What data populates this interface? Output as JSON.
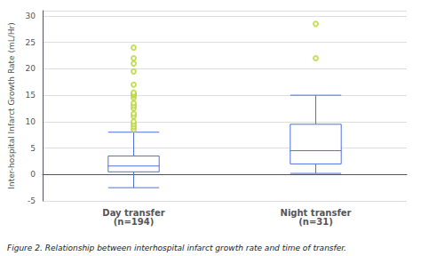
{
  "chart_data": {
    "type": "boxplot",
    "ylabel": "Inter-hospital Infarct Growth Rate (mL/Hr)",
    "caption": "Figure 2. Relationship between interhospital infarct growth rate and time of transfer.",
    "categories": [
      "Day transfer\n(n=194)",
      "Night transfer\n(n=31)"
    ],
    "boxes": [
      {
        "whisker_low": -2.5,
        "q1": 0.5,
        "median": 1.6,
        "q3": 3.5,
        "whisker_high": 8.0,
        "outliers": [
          8.5,
          9.0,
          9.5,
          10.0,
          11.0,
          11.5,
          12.5,
          13.0,
          13.5,
          14.5,
          15.0,
          15.2,
          15.5,
          17.0,
          19.5,
          21.0,
          22.0,
          24.0
        ]
      },
      {
        "whisker_low": 0.2,
        "q1": 2.0,
        "median": 4.5,
        "q3": 9.5,
        "whisker_high": 15.0,
        "outliers": [
          22.0,
          28.5
        ]
      }
    ],
    "ylim": [
      -5,
      31
    ],
    "yticks": [
      -5,
      0,
      5,
      10,
      15,
      20,
      25,
      30
    ],
    "grid": true
  }
}
